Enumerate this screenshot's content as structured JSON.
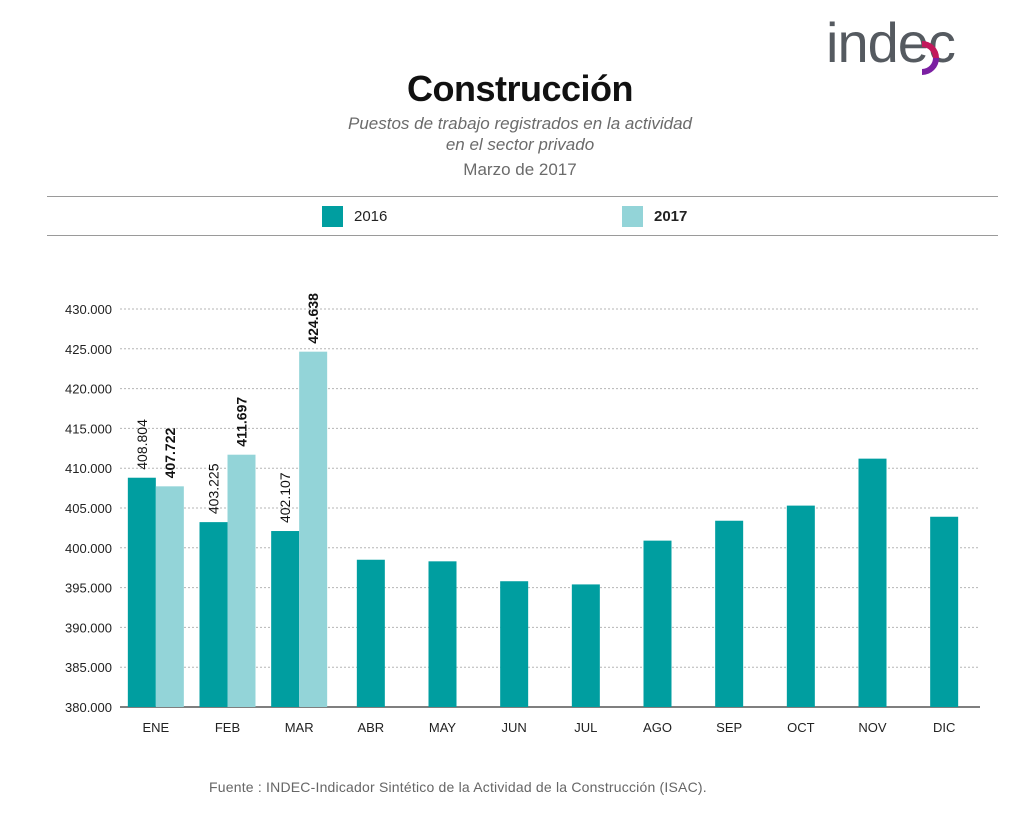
{
  "header": {
    "logo_text": "indec",
    "title": "Construcción",
    "subtitle_line1": "Puestos de trabajo registrados en la actividad",
    "subtitle_line2": "en el sector privado",
    "period": "Marzo de 2017"
  },
  "legend": {
    "items": [
      {
        "label": "2016",
        "color": "#009ea0",
        "bold": false
      },
      {
        "label": "2017",
        "color": "#93d4d8",
        "bold": true
      }
    ]
  },
  "footer": {
    "source": "Fuente : INDEC-Indicador Sintético de la Actividad de la Construcción (ISAC)."
  },
  "chart_data": {
    "type": "bar",
    "title": "Construcción",
    "categories": [
      "ENE",
      "FEB",
      "MAR",
      "ABR",
      "MAY",
      "JUN",
      "JUL",
      "AGO",
      "SEP",
      "OCT",
      "NOV",
      "DIC"
    ],
    "series": [
      {
        "name": "2016",
        "color": "#009ea0",
        "values": [
          408804,
          403225,
          402107,
          398500,
          398300,
          395800,
          395400,
          400900,
          403400,
          405300,
          411200,
          403900
        ],
        "labels": [
          "408.804",
          "403.225",
          "402.107",
          null,
          null,
          null,
          null,
          null,
          null,
          null,
          null,
          null
        ]
      },
      {
        "name": "2017",
        "color": "#93d4d8",
        "values": [
          407722,
          411697,
          424638,
          null,
          null,
          null,
          null,
          null,
          null,
          null,
          null,
          null
        ],
        "labels": [
          "407.722",
          "411.697",
          "424.638",
          null,
          null,
          null,
          null,
          null,
          null,
          null,
          null,
          null
        ]
      }
    ],
    "ylim": [
      380000,
      430000
    ],
    "yticks": [
      380000,
      385000,
      390000,
      395000,
      400000,
      405000,
      410000,
      415000,
      420000,
      425000,
      430000
    ],
    "ytick_labels": [
      "380.000",
      "385.000",
      "390.000",
      "395.000",
      "400.000",
      "405.000",
      "410.000",
      "415.000",
      "420.000",
      "425.000",
      "430.000"
    ],
    "grid": true,
    "legend_position": "top"
  }
}
